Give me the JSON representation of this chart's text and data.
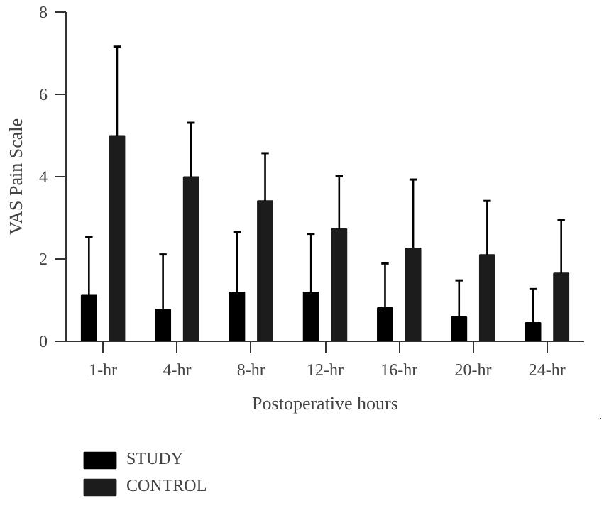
{
  "chart_data": {
    "type": "bar",
    "xlabel": "Postoperative hours",
    "ylabel": "VAS Pain Scale",
    "categories": [
      "1-hr",
      "4-hr",
      "8-hr",
      "12-hr",
      "16-hr",
      "20-hr",
      "24-hr"
    ],
    "series": [
      {
        "name": "STUDY",
        "color": "#000000",
        "values": [
          1.11,
          0.77,
          1.19,
          1.19,
          0.81,
          0.59,
          0.45
        ],
        "errors": [
          [
            1.11,
            2.53
          ],
          [
            0.77,
            2.11
          ],
          [
            1.19,
            2.66
          ],
          [
            1.19,
            2.61
          ],
          [
            0.81,
            1.89
          ],
          [
            0.59,
            1.48
          ],
          [
            0.45,
            1.27
          ]
        ]
      },
      {
        "name": "CONTROL",
        "color": "#1c1c1c",
        "values": [
          4.99,
          3.99,
          3.41,
          2.73,
          2.26,
          2.1,
          1.65
        ],
        "errors": [
          [
            4.99,
            7.16
          ],
          [
            3.99,
            5.31
          ],
          [
            3.41,
            4.57
          ],
          [
            2.73,
            4.01
          ],
          [
            2.26,
            3.93
          ],
          [
            2.1,
            3.41
          ],
          [
            1.65,
            2.94
          ]
        ]
      }
    ],
    "ylim": [
      0,
      8
    ],
    "yticks": [
      0,
      2,
      4,
      6,
      8
    ],
    "grid": false,
    "legend": "bottom left"
  }
}
